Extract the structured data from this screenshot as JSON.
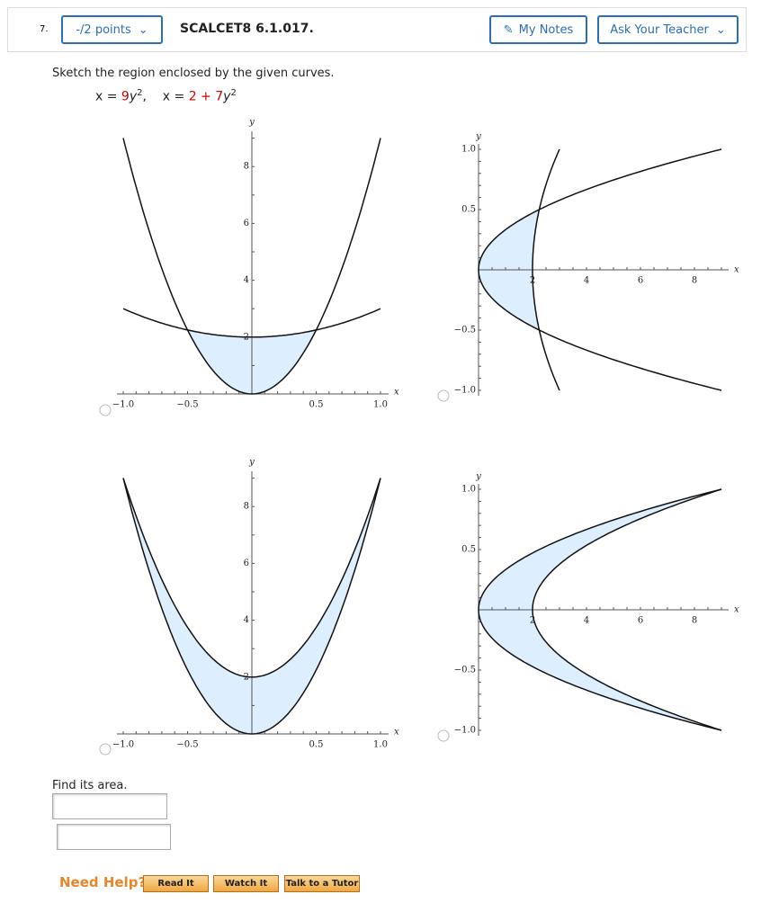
{
  "header": {
    "number": "7.",
    "points": "-/2 points",
    "code": "SCALCET8 6.1.017.",
    "my_notes": "My Notes",
    "ask_teacher": "Ask Your Teacher"
  },
  "question": {
    "prompt": "Sketch the region enclosed by the given curves.",
    "equation": [
      {
        "text": "x = "
      },
      {
        "text": "9",
        "red": true
      },
      {
        "text": "y"
      },
      {
        "text": "2",
        "sup": true
      },
      {
        "text": ",    x = "
      },
      {
        "text": "2 + 7",
        "red": true
      },
      {
        "text": "y"
      },
      {
        "text": "2",
        "sup": true
      }
    ]
  },
  "options": [
    {
      "x_label": "x",
      "y_label": "y",
      "xticks": [
        {
          "value": -1,
          "label": "−1.0"
        },
        {
          "value": -0.5,
          "label": "−0.5"
        },
        0.5,
        {
          "value": 1,
          "label": "1.0"
        }
      ],
      "yticks": [
        2,
        4,
        6,
        8
      ]
    },
    {
      "x_label": "x",
      "y_label": "y",
      "xticks": [
        2,
        4,
        6,
        8
      ],
      "yticks": [
        {
          "value": 1,
          "label": "1.0"
        },
        0.5,
        {
          "value": -0.5,
          "label": "−0.5"
        },
        {
          "value": -1,
          "label": "−1.0"
        }
      ]
    },
    {
      "x_label": "x",
      "y_label": "y",
      "xticks": [
        {
          "value": -1,
          "label": "−1.0"
        },
        {
          "value": -0.5,
          "label": "−0.5"
        },
        0.5,
        {
          "value": 1,
          "label": "1.0"
        }
      ],
      "yticks": [
        2,
        4,
        6,
        8
      ]
    },
    {
      "x_label": "x",
      "y_label": "y",
      "xticks": [
        2,
        4,
        6,
        8
      ],
      "yticks": [
        {
          "value": 1,
          "label": "1.0"
        },
        0.5,
        {
          "value": -0.5,
          "label": "−0.5"
        },
        {
          "value": -1,
          "label": "−1.0"
        }
      ]
    }
  ],
  "area_prompt": "Find its area.",
  "help": {
    "label": "Need Help?",
    "buttons": [
      "Read It",
      "Watch It",
      "Talk to a Tutor"
    ]
  }
}
